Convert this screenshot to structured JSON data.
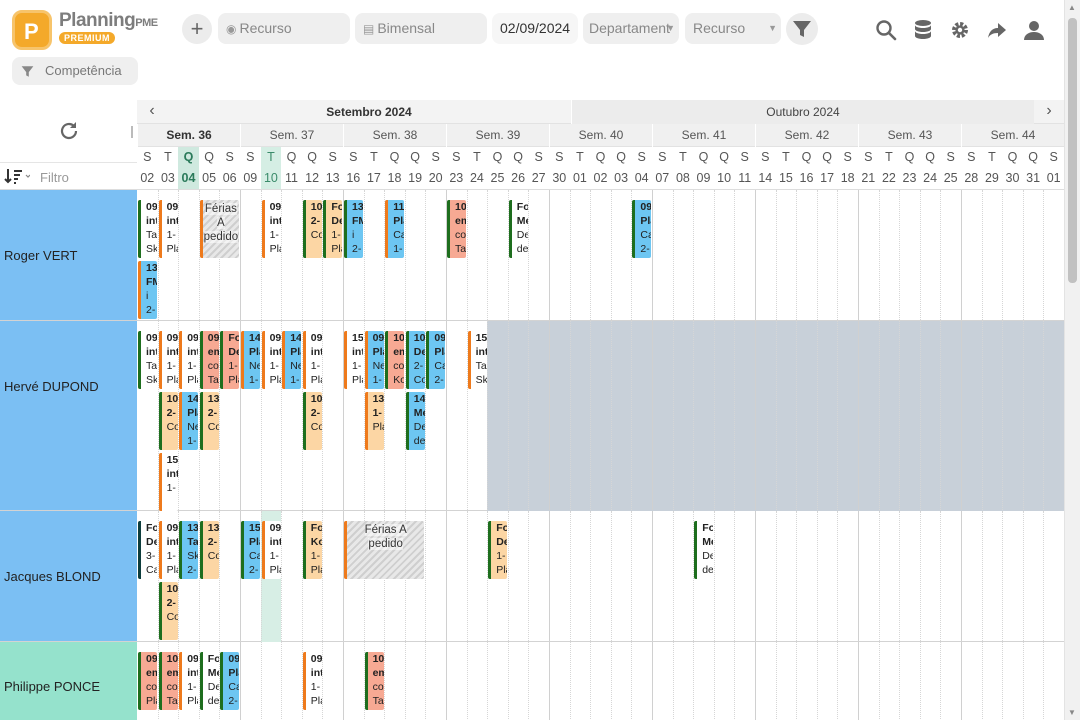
{
  "app": {
    "brand": "Planning",
    "brand_suffix": "PME",
    "edition_badge": "PREMIUM"
  },
  "toolbar": {
    "add_label": "+",
    "resource_search_placeholder": "Recurso",
    "period_label": "Bimensal",
    "date_value": "02/09/2024",
    "department_label": "Departament",
    "resource_select_label": "Recurso",
    "skill_filter_placeholder": "Competência",
    "filter_placeholder": "Filtro",
    "icons": [
      "filter-icon",
      "search-icon",
      "database-icon",
      "gear-icon",
      "share-icon",
      "user-icon"
    ]
  },
  "calendar": {
    "months": [
      {
        "label": "Setembro 2024",
        "current": true
      },
      {
        "label": "Outubro 2024",
        "current": false
      }
    ],
    "weeks": [
      {
        "label": "Sem. 36",
        "current": true
      },
      {
        "label": "Sem. 37"
      },
      {
        "label": "Sem. 38"
      },
      {
        "label": "Sem. 39"
      },
      {
        "label": "Sem. 40"
      },
      {
        "label": "Sem. 41"
      },
      {
        "label": "Sem. 42"
      },
      {
        "label": "Sem. 43"
      },
      {
        "label": "Sem. 44"
      }
    ],
    "day_letters": [
      "S",
      "T",
      "Q",
      "Q",
      "S",
      "S",
      "T",
      "Q",
      "Q",
      "S",
      "S",
      "T",
      "Q",
      "Q",
      "S",
      "S",
      "T",
      "Q",
      "Q",
      "S",
      "S",
      "T",
      "Q",
      "Q",
      "S",
      "S",
      "T",
      "Q",
      "Q",
      "S",
      "S",
      "T",
      "Q",
      "Q",
      "S",
      "S",
      "T",
      "Q",
      "Q",
      "S",
      "S",
      "T",
      "Q",
      "Q",
      "S"
    ],
    "day_numbers": [
      "02",
      "03",
      "04",
      "05",
      "06",
      "09",
      "10",
      "11",
      "12",
      "13",
      "16",
      "17",
      "18",
      "19",
      "20",
      "23",
      "24",
      "25",
      "26",
      "27",
      "30",
      "01",
      "02",
      "03",
      "04",
      "07",
      "08",
      "09",
      "10",
      "11",
      "14",
      "15",
      "16",
      "17",
      "18",
      "21",
      "22",
      "23",
      "24",
      "25",
      "28",
      "29",
      "30",
      "31",
      "01"
    ],
    "today_index": 2,
    "highlight_index": 6
  },
  "resources": [
    {
      "name": "Roger VERT",
      "tasks": [
        {
          "col": 0,
          "row": 0,
          "style": "c-gr",
          "lines": [
            "09",
            "int",
            "Ta",
            "Sk"
          ]
        },
        {
          "col": 0,
          "row": 1,
          "style": "c-bluo",
          "lines": [
            "13",
            "FM",
            "i",
            "2-"
          ]
        },
        {
          "col": 1,
          "row": 0,
          "style": "c-orw",
          "lines": [
            "09",
            "int",
            "1-",
            "Pla"
          ]
        },
        {
          "col": 6,
          "row": 0,
          "style": "c-orw",
          "lines": [
            "09",
            "int",
            "1-",
            "Pla"
          ]
        },
        {
          "col": 8,
          "row": 0,
          "style": "c-grf",
          "lines": [
            "10",
            "2-",
            "Co",
            ""
          ]
        },
        {
          "col": 9,
          "row": 0,
          "style": "c-grf",
          "lines": [
            "Fo",
            "De",
            "1-",
            "Pla"
          ]
        },
        {
          "col": 10,
          "row": 0,
          "style": "c-blu",
          "lines": [
            "13",
            "FM",
            "i",
            "2-"
          ]
        },
        {
          "col": 12,
          "row": 0,
          "style": "c-bluo",
          "lines": [
            "11",
            "Pla",
            "Ca",
            "1-"
          ]
        },
        {
          "col": 15,
          "row": 0,
          "style": "c-sal",
          "lines": [
            "10",
            "em",
            "co",
            "Ta"
          ]
        },
        {
          "col": 18,
          "row": 0,
          "style": "c-pk",
          "lines": [
            "Fo",
            "Me",
            "De",
            "de"
          ]
        },
        {
          "col": 24,
          "row": 0,
          "style": "c-blu",
          "lines": [
            "09",
            "Pla",
            "Ca",
            "2-"
          ]
        }
      ],
      "absences": [
        {
          "col": 3,
          "span": 2,
          "text": "Férias A pedido"
        }
      ]
    },
    {
      "name": "Hervé DUPOND",
      "tasks": [
        {
          "col": 0,
          "row": 0,
          "style": "c-gr",
          "lines": [
            "09",
            "int",
            "Ta",
            "Sk"
          ]
        },
        {
          "col": 1,
          "row": 0,
          "style": "c-orw",
          "lines": [
            "09",
            "int",
            "1-",
            "Pla"
          ]
        },
        {
          "col": 1,
          "row": 1,
          "style": "c-grf",
          "lines": [
            "10",
            "2-",
            "Co",
            ""
          ]
        },
        {
          "col": 1,
          "row": 2,
          "style": "c-orw",
          "lines": [
            "15",
            "int",
            "1-",
            ""
          ]
        },
        {
          "col": 2,
          "row": 0,
          "style": "c-orw",
          "lines": [
            "09",
            "int",
            "1-",
            "Pla"
          ]
        },
        {
          "col": 2,
          "row": 1,
          "style": "c-bluo",
          "lines": [
            "14",
            "Pla",
            "Ne",
            "1-"
          ]
        },
        {
          "col": 3,
          "row": 0,
          "style": "c-sal",
          "lines": [
            "09",
            "em",
            "co",
            "Ta"
          ]
        },
        {
          "col": 3,
          "row": 1,
          "style": "c-grf",
          "lines": [
            "13",
            "2-",
            "Co",
            ""
          ]
        },
        {
          "col": 4,
          "row": 0,
          "style": "c-sal",
          "lines": [
            "Fo",
            "De",
            "1-",
            "Pla"
          ]
        },
        {
          "col": 5,
          "row": 0,
          "style": "c-bluo",
          "lines": [
            "14",
            "Pla",
            "Ne",
            "1-"
          ]
        },
        {
          "col": 6,
          "row": 0,
          "style": "c-orw",
          "lines": [
            "09",
            "int",
            "1-",
            "Pla"
          ]
        },
        {
          "col": 7,
          "row": 0,
          "style": "c-bluo",
          "lines": [
            "14",
            "Pla",
            "Ne",
            "1-"
          ]
        },
        {
          "col": 8,
          "row": 0,
          "style": "c-orw",
          "lines": [
            "09",
            "int",
            "1-",
            "Pla"
          ]
        },
        {
          "col": 8,
          "row": 1,
          "style": "c-grf",
          "lines": [
            "10",
            "2-",
            "Co",
            ""
          ]
        },
        {
          "col": 10,
          "row": 0,
          "style": "c-orw",
          "lines": [
            "15",
            "int",
            "1-",
            "Pla"
          ]
        },
        {
          "col": 11,
          "row": 0,
          "style": "c-bluo",
          "lines": [
            "09",
            "Pla",
            "Ne",
            "1-"
          ]
        },
        {
          "col": 11,
          "row": 1,
          "style": "c-or",
          "lines": [
            "13",
            "1-",
            "Pla",
            ""
          ]
        },
        {
          "col": 12,
          "row": 0,
          "style": "c-sal",
          "lines": [
            "10",
            "em",
            "co",
            "Ko"
          ]
        },
        {
          "col": 13,
          "row": 0,
          "style": "c-blu",
          "lines": [
            "10",
            "De",
            "2-",
            "Co"
          ]
        },
        {
          "col": 13,
          "row": 1,
          "style": "c-blu",
          "lines": [
            "14",
            "Me",
            "De",
            "de"
          ]
        },
        {
          "col": 14,
          "row": 0,
          "style": "c-blu",
          "lines": [
            "09",
            "Pla",
            "Ca",
            "2-"
          ]
        },
        {
          "col": 16,
          "row": 0,
          "style": "c-orw",
          "lines": [
            "15",
            "int",
            "Ta",
            "Sk"
          ]
        }
      ],
      "absences": []
    },
    {
      "name": "Jacques BLOND",
      "tasks": [
        {
          "col": 0,
          "row": 0,
          "style": "c-dk",
          "lines": [
            "Fo",
            "De",
            "3-",
            "Ca"
          ]
        },
        {
          "col": 1,
          "row": 0,
          "style": "c-orw",
          "lines": [
            "09",
            "int",
            "1-",
            "Pla"
          ]
        },
        {
          "col": 1,
          "row": 1,
          "style": "c-grf",
          "lines": [
            "10",
            "2-",
            "Co",
            ""
          ]
        },
        {
          "col": 2,
          "row": 0,
          "style": "c-blu",
          "lines": [
            "13",
            "Ta",
            "Sk",
            "2-"
          ]
        },
        {
          "col": 3,
          "row": 0,
          "style": "c-grf",
          "lines": [
            "13",
            "2-",
            "Co",
            ""
          ]
        },
        {
          "col": 5,
          "row": 0,
          "style": "c-blu",
          "lines": [
            "15",
            "Pla",
            "Ca",
            "2-"
          ]
        },
        {
          "col": 6,
          "row": 0,
          "style": "c-orw",
          "lines": [
            "09",
            "int",
            "1-",
            "Pla"
          ]
        },
        {
          "col": 8,
          "row": 0,
          "style": "c-grf",
          "lines": [
            "Fo",
            "Ko",
            "1-",
            "Pla"
          ]
        },
        {
          "col": 17,
          "row": 0,
          "style": "c-grf",
          "lines": [
            "Fo",
            "De",
            "1-",
            "Pla"
          ]
        },
        {
          "col": 27,
          "row": 0,
          "style": "c-pk",
          "lines": [
            "Fo",
            "Me",
            "De",
            "de"
          ]
        }
      ],
      "absences": [
        {
          "col": 10,
          "span": 4,
          "text": "Férias A pedido"
        }
      ]
    },
    {
      "name": "Philippe PONCE",
      "tasks": [
        {
          "col": 0,
          "row": 0,
          "style": "c-sal",
          "lines": [
            "09",
            "em",
            "co",
            "Pla"
          ]
        },
        {
          "col": 1,
          "row": 0,
          "style": "c-sal",
          "lines": [
            "10",
            "em",
            "co",
            "Ta"
          ]
        },
        {
          "col": 2,
          "row": 0,
          "style": "c-orw",
          "lines": [
            "09",
            "int",
            "1-",
            "Pla"
          ]
        },
        {
          "col": 3,
          "row": 0,
          "style": "c-pk",
          "lines": [
            "Fo",
            "Me",
            "De",
            "de"
          ]
        },
        {
          "col": 4,
          "row": 0,
          "style": "c-blu",
          "lines": [
            "09",
            "Pla",
            "Ca",
            "2-"
          ]
        },
        {
          "col": 8,
          "row": 0,
          "style": "c-orw",
          "lines": [
            "09",
            "int",
            "1-",
            "Pla"
          ]
        },
        {
          "col": 11,
          "row": 0,
          "style": "c-sal",
          "lines": [
            "10",
            "em",
            "co",
            "Ta"
          ]
        }
      ],
      "absences": []
    }
  ]
}
